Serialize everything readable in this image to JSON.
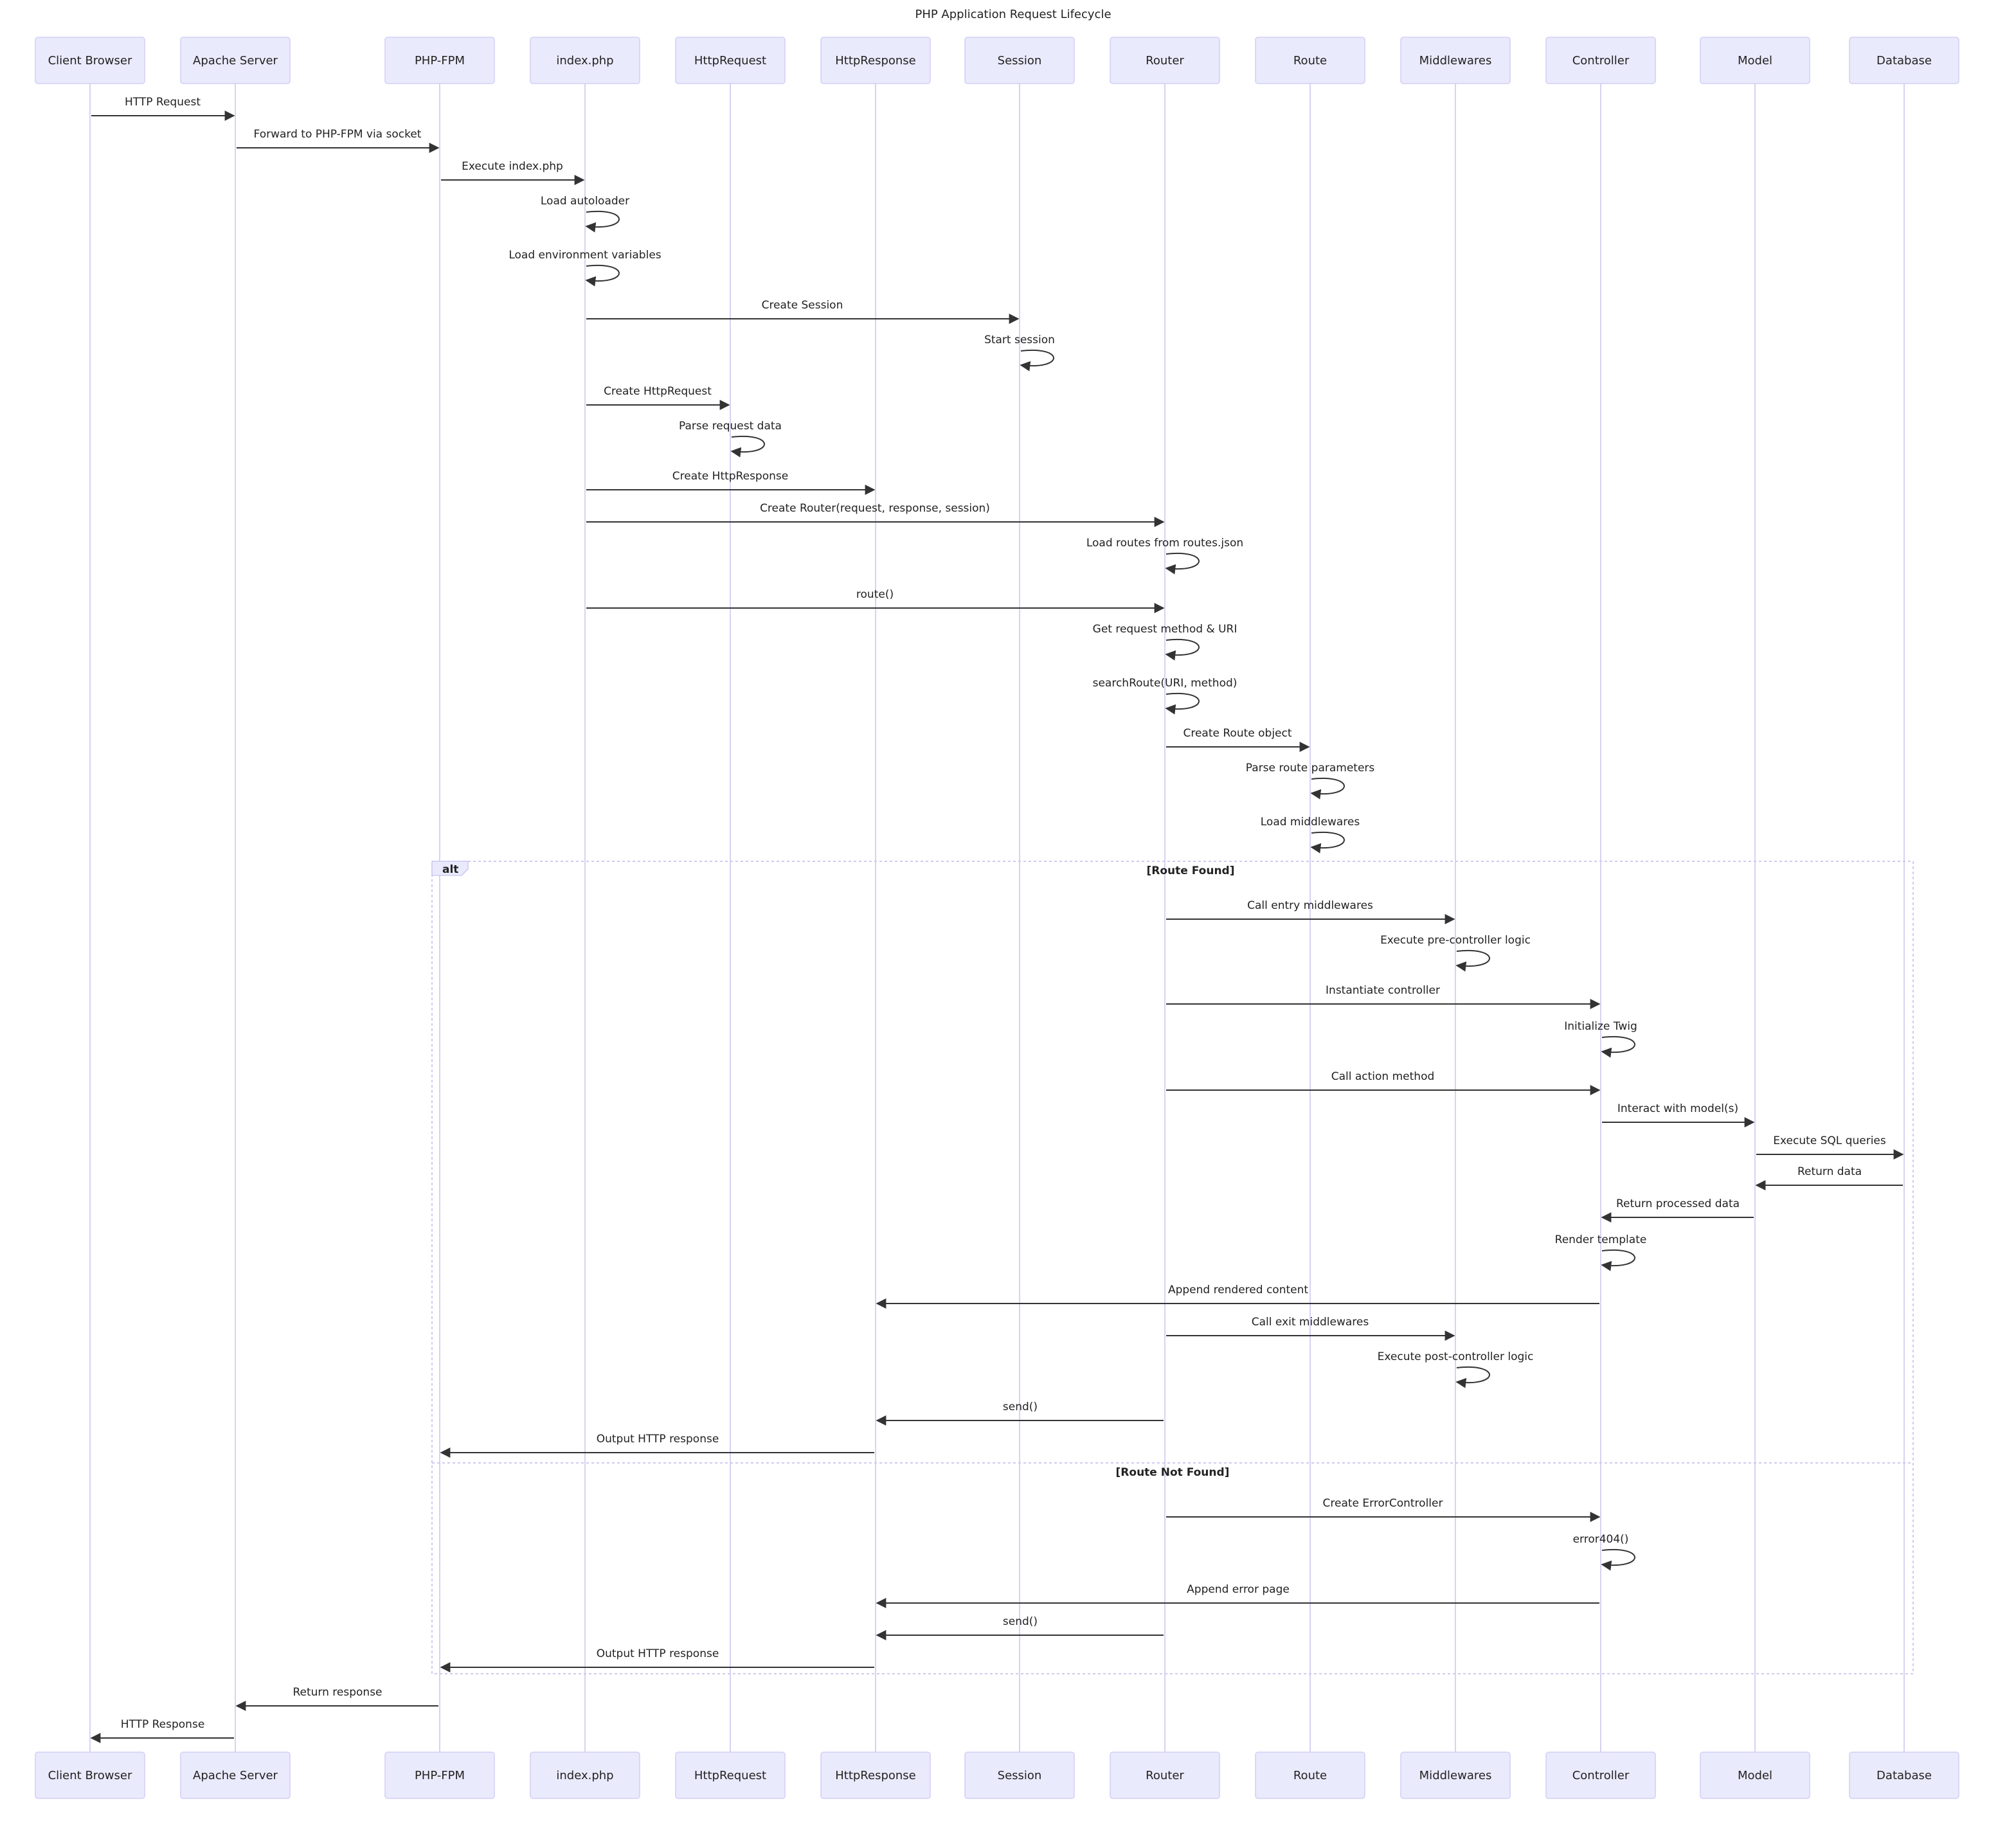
{
  "title": "PHP Application Request Lifecycle",
  "participants": [
    "Client Browser",
    "Apache Server",
    "PHP-FPM",
    "index.php",
    "HttpRequest",
    "HttpResponse",
    "Session",
    "Router",
    "Route",
    "Middlewares",
    "Controller",
    "Model",
    "Database"
  ],
  "messages": [
    {
      "from": 0,
      "to": 1,
      "label": "HTTP Request"
    },
    {
      "from": 1,
      "to": 2,
      "label": "Forward to PHP-FPM via socket"
    },
    {
      "from": 2,
      "to": 3,
      "label": "Execute index.php"
    },
    {
      "from": 3,
      "to": 3,
      "label": "Load autoloader"
    },
    {
      "from": 3,
      "to": 3,
      "label": "Load environment variables"
    },
    {
      "from": 3,
      "to": 6,
      "label": "Create Session"
    },
    {
      "from": 6,
      "to": 6,
      "label": "Start session"
    },
    {
      "from": 3,
      "to": 4,
      "label": "Create HttpRequest"
    },
    {
      "from": 4,
      "to": 4,
      "label": "Parse request data"
    },
    {
      "from": 3,
      "to": 5,
      "label": "Create HttpResponse"
    },
    {
      "from": 3,
      "to": 7,
      "label": "Create Router(request, response, session)"
    },
    {
      "from": 7,
      "to": 7,
      "label": "Load routes from routes.json"
    },
    {
      "from": 3,
      "to": 7,
      "label": "route()"
    },
    {
      "from": 7,
      "to": 7,
      "label": "Get request method & URI"
    },
    {
      "from": 7,
      "to": 7,
      "label": "searchRoute(URI, method)"
    },
    {
      "from": 7,
      "to": 8,
      "label": "Create Route object"
    },
    {
      "from": 8,
      "to": 8,
      "label": "Parse route parameters"
    },
    {
      "from": 8,
      "to": 8,
      "label": "Load middlewares"
    },
    {
      "from": 7,
      "to": 9,
      "label": "Call entry middlewares"
    },
    {
      "from": 9,
      "to": 9,
      "label": "Execute pre-controller logic"
    },
    {
      "from": 7,
      "to": 10,
      "label": "Instantiate controller"
    },
    {
      "from": 10,
      "to": 10,
      "label": "Initialize Twig"
    },
    {
      "from": 7,
      "to": 10,
      "label": "Call action method"
    },
    {
      "from": 10,
      "to": 11,
      "label": "Interact with model(s)"
    },
    {
      "from": 11,
      "to": 12,
      "label": "Execute SQL queries"
    },
    {
      "from": 12,
      "to": 11,
      "label": "Return data"
    },
    {
      "from": 11,
      "to": 10,
      "label": "Return processed data"
    },
    {
      "from": 10,
      "to": 10,
      "label": "Render template"
    },
    {
      "from": 10,
      "to": 5,
      "label": "Append rendered content"
    },
    {
      "from": 7,
      "to": 9,
      "label": "Call exit middlewares"
    },
    {
      "from": 9,
      "to": 9,
      "label": "Execute post-controller logic"
    },
    {
      "from": 7,
      "to": 5,
      "label": "send()"
    },
    {
      "from": 5,
      "to": 2,
      "label": "Output HTTP response"
    },
    {
      "from": 7,
      "to": 10,
      "label": "Create ErrorController"
    },
    {
      "from": 10,
      "to": 10,
      "label": "error404()"
    },
    {
      "from": 10,
      "to": 5,
      "label": "Append error page"
    },
    {
      "from": 7,
      "to": 5,
      "label": "send()"
    },
    {
      "from": 5,
      "to": 2,
      "label": "Output HTTP response"
    },
    {
      "from": 2,
      "to": 1,
      "label": "Return response"
    },
    {
      "from": 1,
      "to": 0,
      "label": "HTTP Response"
    }
  ],
  "alt_frame": {
    "keyword": "alt",
    "sections": [
      "[Route Found]",
      "[Route Not Found]"
    ]
  },
  "colors": {
    "actor_fill": "#eaeafd",
    "actor_border": "#d4d0f5",
    "lifeline": "#d8d2f2",
    "arrow": "#333333"
  }
}
